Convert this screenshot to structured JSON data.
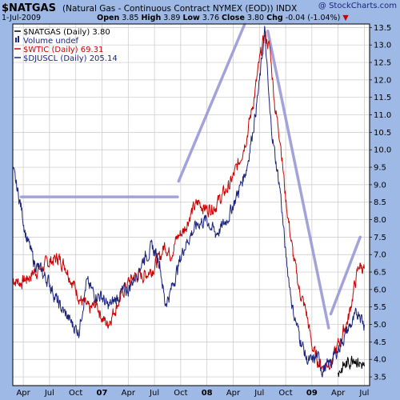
{
  "header": {
    "symbol": "$NATGAS",
    "description": "(Natural Gas - Continuous Contract NYMEX (EOD))",
    "exchange": "INDX",
    "brand": "@ StockCharts.com",
    "date": "1-Jul-2009",
    "open_label": "Open",
    "open": "3.85",
    "high_label": "High",
    "high": "3.89",
    "low_label": "Low",
    "low": "3.76",
    "close_label": "Close",
    "close": "3.80",
    "chg_label": "Chg",
    "chg": "-0.04 (-1.04%)",
    "chg_arrow": "▼"
  },
  "legend": [
    {
      "label": "$NATGAS (Daily) 3.80",
      "color": "#000000",
      "marker": "line"
    },
    {
      "label": "Volume undef",
      "color": "#1a237e",
      "marker": "bars"
    },
    {
      "label": "$WTIC (Daily) 69.31",
      "color": "#cc0000",
      "marker": "line"
    },
    {
      "label": "$DJUSCL (Daily) 205.14",
      "color": "#1a237e",
      "marker": "line"
    }
  ],
  "colors": {
    "background": "#9fb9e6",
    "plot_bg": "#ffffff",
    "grid": "#c8c8c8",
    "wtic": "#cc0000",
    "djuscl": "#1a237e",
    "trendline": "#9a9ad8"
  },
  "chart_data": {
    "type": "line",
    "title": "$NATGAS",
    "ylim": [
      3.25,
      13.6
    ],
    "y_ticks": [
      "3.5",
      "4.0",
      "4.5",
      "5.0",
      "5.5",
      "6.0",
      "6.5",
      "7.0",
      "7.5",
      "8.0",
      "8.5",
      "9.0",
      "9.5",
      "10.0",
      "10.5",
      "11.0",
      "11.5",
      "12.0",
      "12.5",
      "13.0",
      "13.5"
    ],
    "x_range": [
      2006.15,
      2009.55
    ],
    "x_ticks": [
      {
        "label": "Apr",
        "x": 2006.25,
        "year": false
      },
      {
        "label": "Jul",
        "x": 2006.5,
        "year": false
      },
      {
        "label": "Oct",
        "x": 2006.75,
        "year": false
      },
      {
        "label": "07",
        "x": 2007.0,
        "year": true
      },
      {
        "label": "Apr",
        "x": 2007.25,
        "year": false
      },
      {
        "label": "Jul",
        "x": 2007.5,
        "year": false
      },
      {
        "label": "Oct",
        "x": 2007.75,
        "year": false
      },
      {
        "label": "08",
        "x": 2008.0,
        "year": true
      },
      {
        "label": "Apr",
        "x": 2008.25,
        "year": false
      },
      {
        "label": "Jul",
        "x": 2008.5,
        "year": false
      },
      {
        "label": "Oct",
        "x": 2008.75,
        "year": false
      },
      {
        "label": "09",
        "x": 2009.0,
        "year": true
      },
      {
        "label": "Apr",
        "x": 2009.25,
        "year": false
      },
      {
        "label": "Jul",
        "x": 2009.5,
        "year": false
      }
    ],
    "grid": true,
    "legend_position": "top-left",
    "series": [
      {
        "name": "$WTIC (Daily) 69.31",
        "color": "#cc0000",
        "x": [
          2006.15,
          2006.22,
          2006.28,
          2006.35,
          2006.42,
          2006.5,
          2006.58,
          2006.65,
          2006.72,
          2006.8,
          2006.88,
          2006.95,
          2007.0,
          2007.05,
          2007.1,
          2007.18,
          2007.25,
          2007.32,
          2007.4,
          2007.48,
          2007.55,
          2007.6,
          2007.65,
          2007.72,
          2007.78,
          2007.85,
          2007.92,
          2008.0,
          2008.08,
          2008.15,
          2008.22,
          2008.3,
          2008.38,
          2008.45,
          2008.5,
          2008.55,
          2008.6,
          2008.65,
          2008.7,
          2008.75,
          2008.82,
          2008.88,
          2008.95,
          2009.0,
          2009.05,
          2009.1,
          2009.15,
          2009.2,
          2009.25,
          2009.3,
          2009.35,
          2009.4,
          2009.45,
          2009.5
        ],
        "values": [
          6.3,
          6.2,
          6.3,
          6.5,
          6.6,
          6.8,
          6.9,
          6.7,
          6.2,
          5.7,
          5.4,
          5.6,
          5.2,
          5.0,
          5.3,
          5.8,
          6.2,
          6.4,
          6.4,
          6.6,
          6.9,
          7.3,
          7.0,
          7.5,
          7.7,
          8.2,
          8.5,
          8.3,
          8.4,
          8.7,
          9.0,
          9.6,
          10.4,
          11.5,
          12.5,
          13.3,
          12.9,
          11.2,
          10.3,
          8.6,
          7.0,
          6.0,
          5.3,
          4.4,
          4.0,
          3.8,
          3.9,
          4.0,
          4.4,
          4.8,
          5.2,
          6.0,
          6.7,
          6.6
        ]
      },
      {
        "name": "$DJUSCL (Daily) 205.14",
        "color": "#1a237e",
        "x": [
          2006.15,
          2006.22,
          2006.28,
          2006.35,
          2006.42,
          2006.5,
          2006.58,
          2006.65,
          2006.72,
          2006.78,
          2006.85,
          2006.92,
          2007.0,
          2007.05,
          2007.1,
          2007.18,
          2007.25,
          2007.32,
          2007.4,
          2007.48,
          2007.55,
          2007.6,
          2007.65,
          2007.72,
          2007.78,
          2007.85,
          2007.92,
          2008.0,
          2008.08,
          2008.15,
          2008.22,
          2008.3,
          2008.38,
          2008.45,
          2008.5,
          2008.55,
          2008.6,
          2008.65,
          2008.7,
          2008.75,
          2008.82,
          2008.88,
          2008.95,
          2009.0,
          2009.05,
          2009.1,
          2009.15,
          2009.2,
          2009.25,
          2009.3,
          2009.35,
          2009.4,
          2009.45,
          2009.5
        ],
        "values": [
          9.4,
          8.5,
          7.5,
          6.8,
          6.5,
          6.2,
          5.6,
          5.3,
          5.0,
          4.8,
          6.2,
          5.9,
          5.8,
          5.5,
          5.6,
          5.9,
          6.0,
          6.4,
          6.9,
          7.2,
          6.8,
          5.6,
          5.9,
          6.6,
          7.2,
          7.6,
          7.9,
          8.0,
          7.6,
          7.8,
          8.2,
          8.8,
          9.5,
          10.8,
          11.9,
          13.4,
          11.0,
          9.8,
          8.8,
          7.0,
          5.4,
          4.7,
          4.0,
          3.9,
          4.1,
          3.7,
          3.8,
          4.0,
          4.3,
          4.6,
          4.9,
          5.1,
          5.4,
          5.0
        ]
      },
      {
        "name": "$NATGAS (Daily) 3.80",
        "color": "#000000",
        "x": [
          2009.25,
          2009.3,
          2009.35,
          2009.4,
          2009.45,
          2009.5
        ],
        "values": [
          3.6,
          3.8,
          3.9,
          4.1,
          3.9,
          3.8
        ]
      }
    ],
    "annotations": [
      {
        "type": "trendline",
        "color": "#9a9ad8",
        "points": [
          [
            2006.23,
            8.65
          ],
          [
            2007.72,
            8.65
          ]
        ]
      },
      {
        "type": "trendline",
        "color": "#9a9ad8",
        "points": [
          [
            2007.73,
            9.1
          ],
          [
            2008.36,
            13.6
          ]
        ]
      },
      {
        "type": "trendline",
        "color": "#9a9ad8",
        "points": [
          [
            2008.58,
            13.4
          ],
          [
            2009.16,
            4.9
          ]
        ]
      },
      {
        "type": "trendline",
        "color": "#9a9ad8",
        "points": [
          [
            2009.18,
            5.3
          ],
          [
            2009.46,
            7.5
          ]
        ]
      }
    ]
  }
}
